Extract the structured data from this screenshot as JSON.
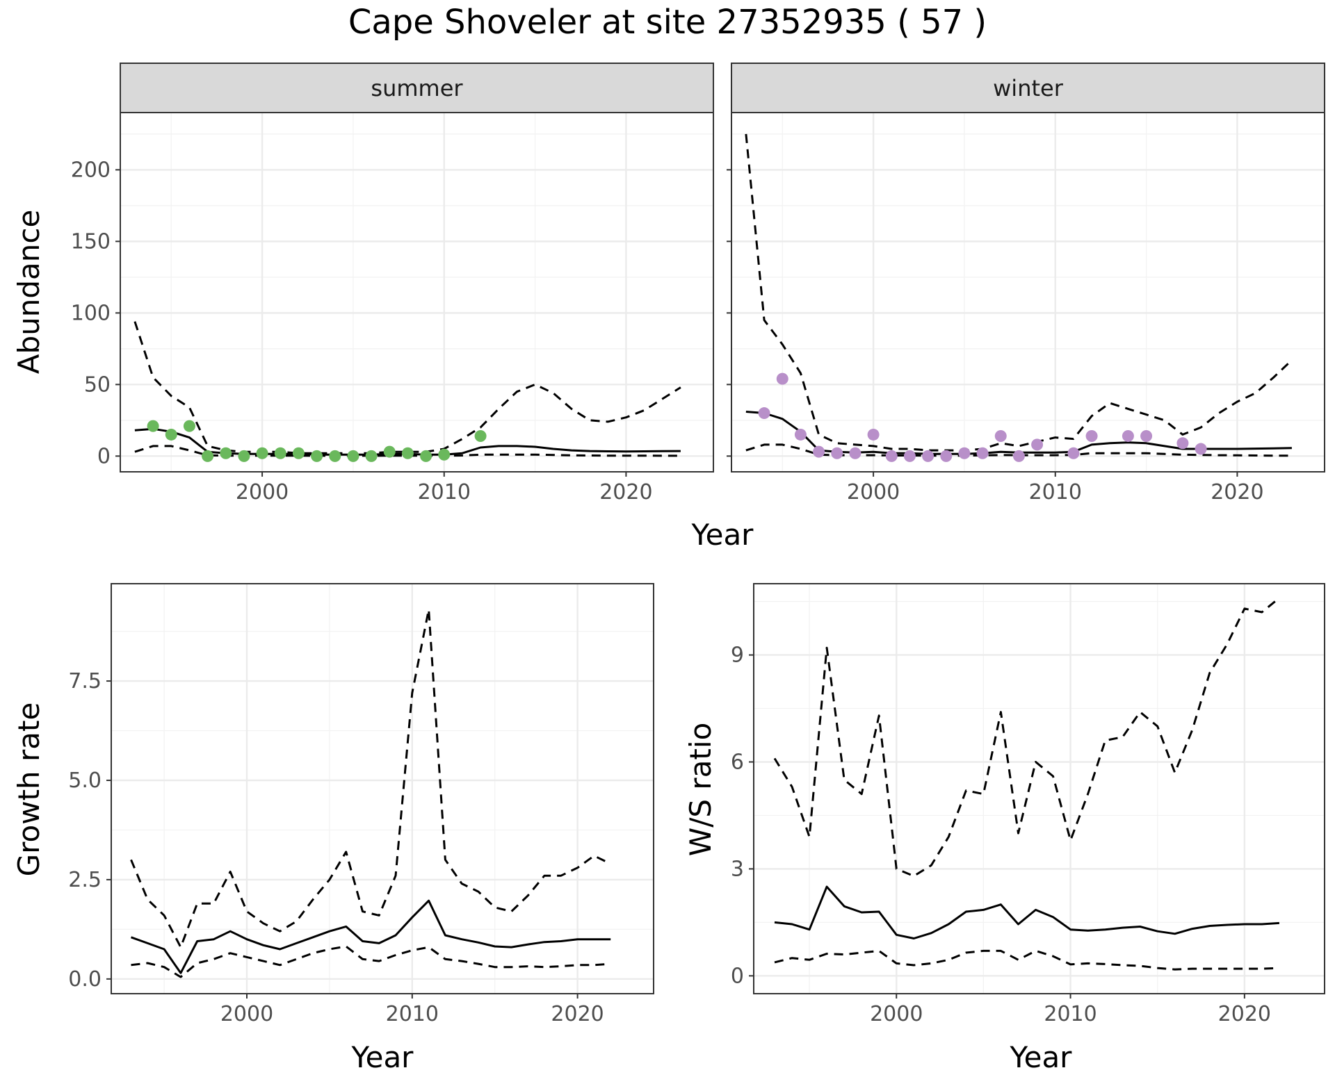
{
  "title": "Cape Shoveler at site 27352935 ( 57 )",
  "colors": {
    "summer_points": "#6ab85c",
    "winter_points": "#b88fc9",
    "lines": "#000000",
    "strip_fill": "#d9d9d9",
    "grid": "#ebebeb"
  },
  "chart_data": [
    {
      "type": "line",
      "facet": "summer",
      "xlabel": "Year",
      "ylabel": "Abundance",
      "xlim": [
        1992.2,
        2024.8
      ],
      "ylim": [
        -11,
        240
      ],
      "x_ticks": [
        2000,
        2010,
        2020
      ],
      "x_tick_labels": [
        "2000",
        "2010",
        "2020"
      ],
      "y_ticks": [
        0,
        50,
        100,
        150,
        200
      ],
      "y_tick_labels": [
        "0",
        "50",
        "100",
        "150",
        "200"
      ],
      "grid": true,
      "series": [
        {
          "role": "upper",
          "style": "dashed",
          "x": [
            1993,
            1994,
            1995,
            1996,
            1997,
            1998,
            1999,
            2000,
            2001,
            2002,
            2003,
            2004,
            2005,
            2006,
            2007,
            2008,
            2009,
            2010,
            2011,
            2012,
            2013,
            2014,
            2015,
            2016,
            2017,
            2018,
            2019,
            2020,
            2021,
            2022,
            2023
          ],
          "values": [
            94,
            55,
            42,
            34,
            7,
            4,
            3,
            3,
            3,
            2,
            2,
            2,
            2,
            2,
            3,
            3,
            3,
            5,
            12,
            20,
            33,
            45,
            50,
            44,
            33,
            25,
            24,
            27,
            32,
            40,
            48
          ]
        },
        {
          "role": "estimate",
          "style": "solid",
          "x": [
            1993,
            1994,
            1995,
            1996,
            1997,
            1998,
            1999,
            2000,
            2001,
            2002,
            2003,
            2004,
            2005,
            2006,
            2007,
            2008,
            2009,
            2010,
            2011,
            2012,
            2013,
            2014,
            2015,
            2016,
            2017,
            2018,
            2019,
            2020,
            2021,
            2022,
            2023
          ],
          "values": [
            18,
            19,
            17,
            13,
            3,
            2,
            1.5,
            1.5,
            1.5,
            1.5,
            1,
            1,
            1,
            1,
            1.5,
            1.5,
            1,
            1,
            2,
            6,
            7,
            7,
            6.5,
            5,
            4,
            3.5,
            3.3,
            3.2,
            3.3,
            3.4,
            3.5
          ]
        },
        {
          "role": "lower",
          "style": "dashed",
          "x": [
            1993,
            1994,
            1995,
            1996,
            1997,
            1998,
            1999,
            2000,
            2001,
            2002,
            2003,
            2004,
            2005,
            2006,
            2007,
            2008,
            2009,
            2010,
            2011,
            2012,
            2013,
            2014,
            2015,
            2016,
            2017,
            2018,
            2019,
            2020,
            2021,
            2022,
            2023
          ],
          "values": [
            3,
            7,
            7,
            4,
            0.5,
            0.3,
            0.3,
            0.3,
            0.3,
            0.3,
            0.2,
            0.2,
            0.2,
            0.2,
            0.3,
            0.3,
            0.2,
            0.2,
            0.4,
            1,
            1,
            1,
            1,
            0.8,
            0.5,
            0.4,
            0.3,
            0.3,
            0.3,
            0.2,
            0.2
          ]
        },
        {
          "role": "observed",
          "style": "points",
          "x": [
            1994,
            1995,
            1996,
            1997,
            1998,
            1999,
            2000,
            2001,
            2002,
            2003,
            2004,
            2005,
            2006,
            2007,
            2008,
            2009,
            2010,
            2012
          ],
          "values": [
            21,
            15,
            21,
            0,
            2,
            0,
            2,
            2,
            2,
            0,
            0,
            0,
            0,
            3,
            2,
            0,
            1,
            14
          ]
        }
      ]
    },
    {
      "type": "line",
      "facet": "winter",
      "xlabel": "Year",
      "ylabel": "Abundance",
      "xlim": [
        1992.2,
        2024.8
      ],
      "ylim": [
        -11,
        240
      ],
      "x_ticks": [
        2000,
        2010,
        2020
      ],
      "x_tick_labels": [
        "2000",
        "2010",
        "2020"
      ],
      "y_ticks": [
        0,
        50,
        100,
        150,
        200
      ],
      "grid": true,
      "series": [
        {
          "role": "upper",
          "style": "dashed",
          "x": [
            1993,
            1994,
            1995,
            1996,
            1997,
            1998,
            1999,
            2000,
            2001,
            2002,
            2003,
            2004,
            2005,
            2006,
            2007,
            2008,
            2009,
            2010,
            2011,
            2012,
            2013,
            2014,
            2015,
            2016,
            2017,
            2018,
            2019,
            2020,
            2021,
            2022,
            2023
          ],
          "values": [
            225,
            95,
            78,
            58,
            15,
            9,
            8,
            7,
            5,
            5,
            4,
            4,
            4,
            5,
            9,
            7,
            10,
            13,
            12,
            28,
            37,
            33,
            29,
            25,
            15,
            20,
            30,
            38,
            44,
            55,
            67
          ]
        },
        {
          "role": "estimate",
          "style": "solid",
          "x": [
            1993,
            1994,
            1995,
            1996,
            1997,
            1998,
            1999,
            2000,
            2001,
            2002,
            2003,
            2004,
            2005,
            2006,
            2007,
            2008,
            2009,
            2010,
            2011,
            2012,
            2013,
            2014,
            2015,
            2016,
            2017,
            2018,
            2019,
            2020,
            2021,
            2022,
            2023
          ],
          "values": [
            31,
            30,
            26,
            17,
            4,
            3,
            2.5,
            3,
            2,
            2,
            1.5,
            1.5,
            1.5,
            2,
            3,
            2.5,
            2.5,
            2.5,
            3,
            8,
            9,
            9.5,
            9,
            7,
            5,
            5,
            5,
            5,
            5.2,
            5.4,
            5.6
          ]
        },
        {
          "role": "lower",
          "style": "dashed",
          "x": [
            1993,
            1994,
            1995,
            1996,
            1997,
            1998,
            1999,
            2000,
            2001,
            2002,
            2003,
            2004,
            2005,
            2006,
            2007,
            2008,
            2009,
            2010,
            2011,
            2012,
            2013,
            2014,
            2015,
            2016,
            2017,
            2018,
            2019,
            2020,
            2021,
            2022,
            2023
          ],
          "values": [
            4,
            8,
            8,
            5,
            1,
            0.6,
            0.5,
            0.6,
            0.4,
            0.4,
            0.3,
            0.3,
            0.3,
            0.5,
            0.7,
            0.6,
            0.6,
            0.6,
            0.8,
            2,
            2,
            2,
            2,
            1.5,
            1,
            0.8,
            0.6,
            0.5,
            0.4,
            0.3,
            0.3
          ]
        },
        {
          "role": "observed",
          "style": "points",
          "x": [
            1994,
            1995,
            1996,
            1997,
            1998,
            1999,
            2000,
            2001,
            2002,
            2003,
            2004,
            2005,
            2006,
            2007,
            2008,
            2009,
            2011,
            2012,
            2014,
            2015,
            2017,
            2018
          ],
          "values": [
            30,
            54,
            15,
            3,
            2,
            2,
            15,
            0,
            0,
            0,
            0,
            2,
            2,
            14,
            0,
            8,
            2,
            14,
            14,
            14,
            9,
            5
          ]
        }
      ]
    },
    {
      "type": "line",
      "xlabel": "Year",
      "ylabel": "Growth rate",
      "xlim": [
        1991.8,
        2024.6
      ],
      "ylim": [
        -0.37,
        9.95
      ],
      "x_ticks": [
        2000,
        2010,
        2020
      ],
      "x_tick_labels": [
        "2000",
        "2010",
        "2020"
      ],
      "y_ticks": [
        0,
        2.5,
        5,
        7.5
      ],
      "y_tick_labels": [
        "0.0",
        "2.5",
        "5.0",
        "7.5"
      ],
      "grid": true,
      "series": [
        {
          "role": "upper",
          "style": "dashed",
          "x": [
            1993,
            1994,
            1995,
            1996,
            1997,
            1998,
            1999,
            2000,
            2001,
            2002,
            2003,
            2004,
            2005,
            2006,
            2007,
            2008,
            2009,
            2010,
            2011,
            2012,
            2013,
            2014,
            2015,
            2016,
            2017,
            2018,
            2019,
            2020,
            2021,
            2022
          ],
          "values": [
            3,
            2,
            1.6,
            0.8,
            1.9,
            1.9,
            2.7,
            1.7,
            1.4,
            1.2,
            1.45,
            2,
            2.5,
            3.2,
            1.7,
            1.6,
            2.6,
            7.2,
            9.3,
            3,
            2.4,
            2.2,
            1.8,
            1.7,
            2.1,
            2.6,
            2.6,
            2.8,
            3.1,
            2.9
          ]
        },
        {
          "role": "estimate",
          "style": "solid",
          "x": [
            1993,
            1994,
            1995,
            1996,
            1997,
            1998,
            1999,
            2000,
            2001,
            2002,
            2003,
            2004,
            2005,
            2006,
            2007,
            2008,
            2009,
            2010,
            2011,
            2012,
            2013,
            2014,
            2015,
            2016,
            2017,
            2018,
            2019,
            2020,
            2021,
            2022
          ],
          "values": [
            1.05,
            0.9,
            0.75,
            0.15,
            0.95,
            1.0,
            1.2,
            1.0,
            0.85,
            0.75,
            0.9,
            1.05,
            1.2,
            1.32,
            0.95,
            0.9,
            1.1,
            1.55,
            1.97,
            1.1,
            1.0,
            0.92,
            0.82,
            0.8,
            0.87,
            0.93,
            0.95,
            1.0,
            1.0,
            1.0
          ]
        },
        {
          "role": "lower",
          "style": "dashed",
          "x": [
            1993,
            1994,
            1995,
            1996,
            1997,
            1998,
            1999,
            2000,
            2001,
            2002,
            2003,
            2004,
            2005,
            2006,
            2007,
            2008,
            2009,
            2010,
            2011,
            2012,
            2013,
            2014,
            2015,
            2016,
            2017,
            2018,
            2019,
            2020,
            2021,
            2022
          ],
          "values": [
            0.35,
            0.4,
            0.3,
            0.05,
            0.4,
            0.5,
            0.65,
            0.55,
            0.45,
            0.35,
            0.5,
            0.65,
            0.75,
            0.82,
            0.5,
            0.45,
            0.6,
            0.72,
            0.8,
            0.5,
            0.45,
            0.38,
            0.3,
            0.3,
            0.32,
            0.3,
            0.32,
            0.35,
            0.35,
            0.38
          ]
        }
      ]
    },
    {
      "type": "line",
      "xlabel": "Year",
      "ylabel": "W/S ratio",
      "xlim": [
        1991.8,
        2024.6
      ],
      "ylim": [
        -0.5,
        11.0
      ],
      "x_ticks": [
        2000,
        2010,
        2020
      ],
      "x_tick_labels": [
        "2000",
        "2010",
        "2020"
      ],
      "y_ticks": [
        0,
        3,
        6,
        9
      ],
      "y_tick_labels": [
        "0",
        "3",
        "6",
        "9"
      ],
      "grid": true,
      "series": [
        {
          "role": "upper",
          "style": "dashed",
          "x": [
            1993,
            1994,
            1995,
            1996,
            1997,
            1998,
            1999,
            2000,
            2001,
            2002,
            2003,
            2004,
            2005,
            2006,
            2007,
            2008,
            2009,
            2010,
            2011,
            2012,
            2013,
            2014,
            2015,
            2016,
            2017,
            2018,
            2019,
            2020,
            2021,
            2022
          ],
          "values": [
            6.1,
            5.3,
            3.9,
            9.2,
            5.5,
            5.1,
            7.3,
            3.0,
            2.8,
            3.1,
            3.9,
            5.2,
            5.1,
            7.4,
            4.0,
            6.0,
            5.6,
            3.8,
            5.1,
            6.6,
            6.7,
            7.4,
            7.0,
            5.7,
            6.9,
            8.5,
            9.3,
            10.3,
            10.2,
            10.6
          ]
        },
        {
          "role": "estimate",
          "style": "solid",
          "x": [
            1993,
            1994,
            1995,
            1996,
            1997,
            1998,
            1999,
            2000,
            2001,
            2002,
            2003,
            2004,
            2005,
            2006,
            2007,
            2008,
            2009,
            2010,
            2011,
            2012,
            2013,
            2014,
            2015,
            2016,
            2017,
            2018,
            2019,
            2020,
            2021,
            2022
          ],
          "values": [
            1.5,
            1.45,
            1.3,
            2.5,
            1.95,
            1.78,
            1.8,
            1.15,
            1.05,
            1.2,
            1.45,
            1.8,
            1.85,
            2.0,
            1.45,
            1.85,
            1.65,
            1.3,
            1.27,
            1.3,
            1.35,
            1.38,
            1.25,
            1.18,
            1.32,
            1.4,
            1.43,
            1.45,
            1.45,
            1.48
          ]
        },
        {
          "role": "lower",
          "style": "dashed",
          "x": [
            1993,
            1994,
            1995,
            1996,
            1997,
            1998,
            1999,
            2000,
            2001,
            2002,
            2003,
            2004,
            2005,
            2006,
            2007,
            2008,
            2009,
            2010,
            2011,
            2012,
            2013,
            2014,
            2015,
            2016,
            2017,
            2018,
            2019,
            2020,
            2021,
            2022
          ],
          "values": [
            0.38,
            0.5,
            0.45,
            0.62,
            0.6,
            0.65,
            0.7,
            0.35,
            0.3,
            0.35,
            0.45,
            0.65,
            0.7,
            0.7,
            0.45,
            0.7,
            0.55,
            0.32,
            0.35,
            0.33,
            0.3,
            0.28,
            0.22,
            0.18,
            0.2,
            0.2,
            0.2,
            0.2,
            0.2,
            0.22
          ]
        }
      ]
    }
  ]
}
